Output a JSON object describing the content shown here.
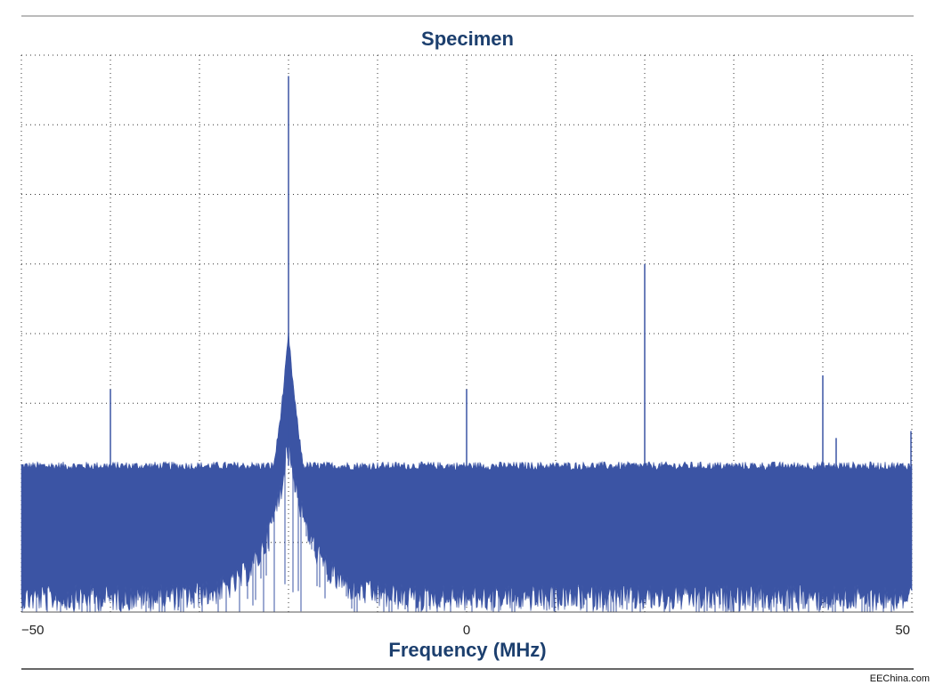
{
  "chart_data": {
    "type": "line",
    "title": "Specimen",
    "xlabel": "Frequency (MHz)",
    "ylabel": "",
    "xlim": [
      -50,
      50
    ],
    "ylim": [
      0,
      8
    ],
    "x_ticks": [
      -50,
      0,
      50
    ],
    "x_tick_labels": [
      "−50",
      "0",
      "50"
    ],
    "grid": true,
    "grid_style": "dotted",
    "series_color": "#3b54a4",
    "noise_floor": {
      "upper": 2.1,
      "lower": 0.4
    },
    "peak_shoulder": {
      "center": -20,
      "height": 4.0,
      "width": 2.6
    },
    "spurs": [
      {
        "x": -45.1,
        "y": 2.1
      },
      {
        "x": -40.0,
        "y": 3.2
      },
      {
        "x": -20.0,
        "y": 7.7
      },
      {
        "x": 0.0,
        "y": 3.2
      },
      {
        "x": 20.0,
        "y": 5.0
      },
      {
        "x": 40.0,
        "y": 3.4
      },
      {
        "x": 41.5,
        "y": 2.5
      },
      {
        "x": 49.9,
        "y": 2.6
      }
    ]
  },
  "watermark": "EEChina.com"
}
